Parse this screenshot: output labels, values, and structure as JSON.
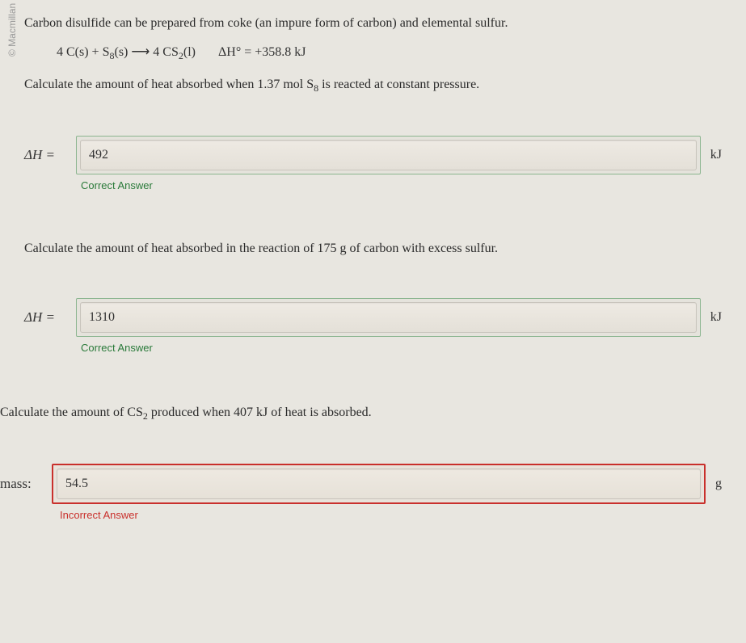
{
  "watermark": "© Macmillan Learning",
  "intro": "Carbon disulfide can be prepared from coke (an impure form of carbon) and elemental sulfur.",
  "equation_lhs": "4 C(s) + S",
  "equation_s8_sub": "8",
  "equation_mid1": "(s) ⟶ 4 CS",
  "equation_cs2_sub": "2",
  "equation_mid2": "(l)",
  "equation_deltaH_label": "ΔH° = +358.8 kJ",
  "q1_text_a": "Calculate the amount of heat absorbed when 1.37 mol S",
  "q1_text_sub": "8",
  "q1_text_b": " is reacted at constant pressure.",
  "q2_text": "Calculate the amount of heat absorbed in the reaction of 175 g of carbon with excess sulfur.",
  "q3_text_a": "Calculate the amount of CS",
  "q3_text_sub": "2",
  "q3_text_b": " produced when 407 kJ of heat is absorbed.",
  "label_deltaH": "ΔH =",
  "label_mass": "mass:",
  "answers": {
    "q1": {
      "value": "492",
      "unit": "kJ",
      "feedback": "Correct Answer",
      "status": "correct"
    },
    "q2": {
      "value": "1310",
      "unit": "kJ",
      "feedback": "Correct Answer",
      "status": "correct"
    },
    "q3": {
      "value": "54.5",
      "unit": "g",
      "feedback": "Incorrect Answer",
      "status": "incorrect"
    }
  },
  "colors": {
    "correct_border": "#8bb58f",
    "correct_text": "#2a7a3a",
    "incorrect_border": "#c9302c",
    "incorrect_text": "#c9302c",
    "background": "#e8e6e0",
    "field_bg": "#e5e3dc"
  }
}
